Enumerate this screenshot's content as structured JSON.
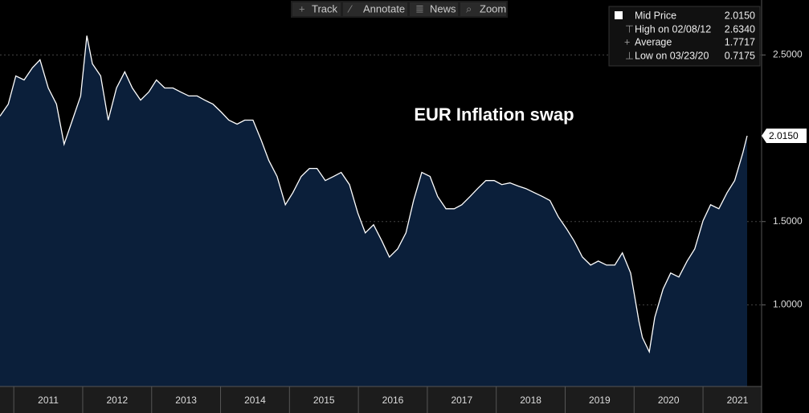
{
  "toolbar": [
    "Track",
    "Annotate",
    "News",
    "Zoom"
  ],
  "legend": [
    {
      "label": "Mid Price",
      "value": "2.0150"
    },
    {
      "label": "High on 02/08/12",
      "value": "2.6340"
    },
    {
      "label": "Average",
      "value": "1.7717"
    },
    {
      "label": "Low on 03/23/20",
      "value": "0.7175"
    }
  ],
  "last_price_label": "2.0150",
  "chart_data": {
    "type": "line",
    "title": "EUR Inflation swap",
    "xlim": [
      2010.8,
      2021.85
    ],
    "xticks": [
      2011,
      2012,
      2013,
      2014,
      2015,
      2016,
      2017,
      2018,
      2019,
      2020,
      2021
    ],
    "ylim": [
      0.51,
      2.83
    ],
    "yticks": [
      {
        "value": 1.0,
        "label": "1.0000"
      },
      {
        "value": 1.5,
        "label": "1.5000"
      },
      {
        "value": 2.5,
        "label": "2.5000"
      }
    ],
    "grid": true,
    "series": [
      {
        "name": "Mid Price",
        "color": "#ffffff",
        "fill": "#0b1f3a",
        "x": [
          2010.8,
          2010.92,
          2011.03,
          2011.15,
          2011.27,
          2011.38,
          2011.5,
          2011.62,
          2011.73,
          2011.85,
          2011.97,
          2012.06,
          2012.14,
          2012.26,
          2012.37,
          2012.49,
          2012.61,
          2012.72,
          2012.84,
          2012.96,
          2013.07,
          2013.19,
          2013.31,
          2013.42,
          2013.54,
          2013.66,
          2013.77,
          2013.89,
          2014.01,
          2014.12,
          2014.24,
          2014.35,
          2014.47,
          2014.59,
          2014.7,
          2014.82,
          2014.94,
          2015.05,
          2015.17,
          2015.29,
          2015.4,
          2015.52,
          2015.64,
          2015.75,
          2015.87,
          2015.99,
          2016.1,
          2016.22,
          2016.34,
          2016.45,
          2016.57,
          2016.69,
          2016.8,
          2016.92,
          2017.04,
          2017.15,
          2017.27,
          2017.39,
          2017.5,
          2017.62,
          2017.73,
          2017.85,
          2017.97,
          2018.08,
          2018.2,
          2018.32,
          2018.43,
          2018.55,
          2018.67,
          2018.78,
          2018.9,
          2019.02,
          2019.13,
          2019.25,
          2019.37,
          2019.48,
          2019.6,
          2019.72,
          2019.83,
          2019.95,
          2020.07,
          2020.12,
          2020.22,
          2020.3,
          2020.42,
          2020.53,
          2020.65,
          2020.77,
          2020.88,
          2021.0,
          2021.11,
          2021.23,
          2021.35,
          2021.46,
          2021.58,
          2021.64
        ],
        "values": [
          2.133,
          2.205,
          2.374,
          2.35,
          2.423,
          2.471,
          2.302,
          2.205,
          1.964,
          2.109,
          2.254,
          2.616,
          2.447,
          2.374,
          2.109,
          2.302,
          2.399,
          2.302,
          2.229,
          2.278,
          2.35,
          2.302,
          2.302,
          2.278,
          2.254,
          2.254,
          2.229,
          2.205,
          2.157,
          2.109,
          2.085,
          2.109,
          2.109,
          1.988,
          1.867,
          1.771,
          1.601,
          1.674,
          1.771,
          1.819,
          1.819,
          1.746,
          1.771,
          1.795,
          1.722,
          1.553,
          1.432,
          1.481,
          1.384,
          1.287,
          1.336,
          1.432,
          1.626,
          1.795,
          1.771,
          1.65,
          1.577,
          1.577,
          1.601,
          1.65,
          1.698,
          1.746,
          1.746,
          1.722,
          1.732,
          1.713,
          1.698,
          1.674,
          1.65,
          1.626,
          1.529,
          1.457,
          1.384,
          1.287,
          1.239,
          1.263,
          1.239,
          1.239,
          1.312,
          1.191,
          0.901,
          0.804,
          0.718,
          0.925,
          1.094,
          1.191,
          1.167,
          1.263,
          1.336,
          1.505,
          1.601,
          1.577,
          1.674,
          1.746,
          1.915,
          2.015
        ]
      }
    ]
  }
}
